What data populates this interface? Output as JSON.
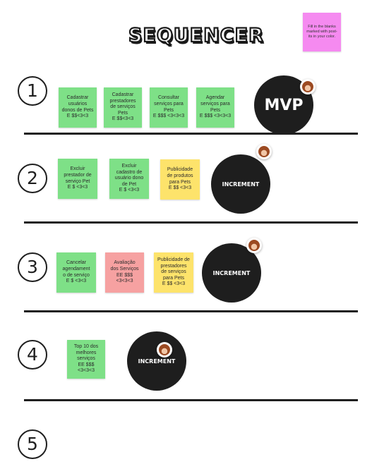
{
  "title": "SEQUENCER",
  "instruction_note": "Fill in the blanks marked with post-its in your color.",
  "rows": [
    {
      "number": "①",
      "milestone": "MVP",
      "notes": [
        {
          "text": "Cadastrar\nusuários\ndonos de Pets\nE $$<3<3",
          "color": "#7ee087"
        },
        {
          "text": "Cadastrar\nprestadores\nde serviços\nPets\nE $$<3<3",
          "color": "#7ee087"
        },
        {
          "text": "Consultar\nserviços para\nPets\nE $$$ <3<3<3",
          "color": "#7ee087"
        },
        {
          "text": "Agendar\nserviços para\nPets\nE $$$ <3<3<3",
          "color": "#7ee087"
        }
      ]
    },
    {
      "number": "②",
      "milestone": "INCREMENT",
      "notes": [
        {
          "text": "Excluir\nprestador de\nserviço Pet\nE $ <3<3",
          "color": "#7ee087"
        },
        {
          "text": "Excluir\ncadastro de\nusuário dono\nde Pet\nE $ <3<3",
          "color": "#7ee087"
        },
        {
          "text": "Publicidade\nde produtos\npara Pets\nE $$ <3<3",
          "color": "#fde36b"
        }
      ]
    },
    {
      "number": "③",
      "milestone": "INCREMENT",
      "notes": [
        {
          "text": "Cancelar\nagendament\no de serviço\nE $ <3<3",
          "color": "#7ee087"
        },
        {
          "text": "Avaliação\ndos Serviços\nEE $$$\n<3<3<3",
          "color": "#f6a1a1"
        },
        {
          "text": "Publicidade de\nprestadores\nde serviços\npara Pets\nE $$ <3<3",
          "color": "#fde36b"
        }
      ]
    },
    {
      "number": "④",
      "milestone": "INCREMENT",
      "notes": [
        {
          "text": "Top 10 dos\nmelhores\nserviços\nEE $$$ <3<3<3",
          "color": "#7ee087"
        }
      ]
    },
    {
      "number": "⑤",
      "milestone": "",
      "notes": []
    }
  ]
}
